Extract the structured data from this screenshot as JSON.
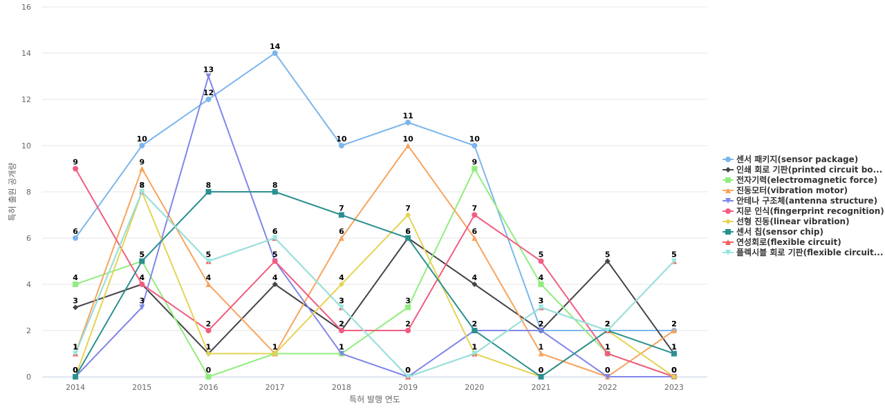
{
  "chart_data": {
    "type": "line",
    "title": "",
    "xlabel": "특허 발행 연도",
    "ylabel": "특허 출원 공개량",
    "x": [
      "2014",
      "2015",
      "2016",
      "2017",
      "2018",
      "2019",
      "2020",
      "2021",
      "2022",
      "2023"
    ],
    "ylim": [
      0,
      16
    ],
    "yticks": [
      0,
      2,
      4,
      6,
      8,
      10,
      12,
      14,
      16
    ],
    "grid": true,
    "legend_position": "right",
    "data_labels": true,
    "series": [
      {
        "name": "센서 패키지(sensor package)",
        "color": "#7cb5ec",
        "marker": "circle",
        "values": [
          6,
          10,
          12,
          14,
          10,
          11,
          10,
          2,
          2,
          2
        ]
      },
      {
        "name": "인쇄 회로 기판(printed circuit bo...",
        "color": "#434348",
        "marker": "diamond",
        "values": [
          3,
          4,
          1,
          4,
          2,
          6,
          4,
          2,
          5,
          1
        ]
      },
      {
        "name": "전자기력(electromagnetic force)",
        "color": "#90ed7d",
        "marker": "square",
        "values": [
          4,
          5,
          0,
          1,
          1,
          3,
          9,
          4,
          1,
          0
        ]
      },
      {
        "name": "진동모터(vibration motor)",
        "color": "#f7a35c",
        "marker": "triangle",
        "values": [
          1,
          9,
          4,
          1,
          6,
          10,
          6,
          1,
          0,
          2
        ]
      },
      {
        "name": "안테나 구조체(antenna structure)",
        "color": "#8085e9",
        "marker": "triangle-down",
        "values": [
          0,
          3,
          13,
          5,
          1,
          0,
          2,
          2,
          0,
          0
        ]
      },
      {
        "name": "지문 인식(fingerprint recognition)",
        "color": "#f15c80",
        "marker": "circle",
        "values": [
          9,
          4,
          2,
          5,
          2,
          2,
          7,
          5,
          1,
          0
        ]
      },
      {
        "name": "선형 진동(linear vibration)",
        "color": "#e4d354",
        "marker": "diamond",
        "values": [
          0,
          8,
          1,
          1,
          4,
          7,
          1,
          0,
          2,
          0
        ]
      },
      {
        "name": "센서 칩(sensor chip)",
        "color": "#2b908f",
        "marker": "square",
        "values": [
          0,
          5,
          8,
          8,
          7,
          6,
          2,
          0,
          2,
          1
        ]
      },
      {
        "name": "연성회로(flexible circuit)",
        "color": "#f45b5b",
        "marker": "triangle",
        "values": [
          1,
          8,
          5,
          6,
          3,
          0,
          1,
          3,
          2,
          5
        ]
      },
      {
        "name": "플렉시블 회로 기판(flexible circuit...",
        "color": "#91e8e1",
        "marker": "triangle-down",
        "values": [
          1,
          8,
          5,
          6,
          3,
          0,
          1,
          3,
          2,
          5
        ]
      }
    ]
  }
}
